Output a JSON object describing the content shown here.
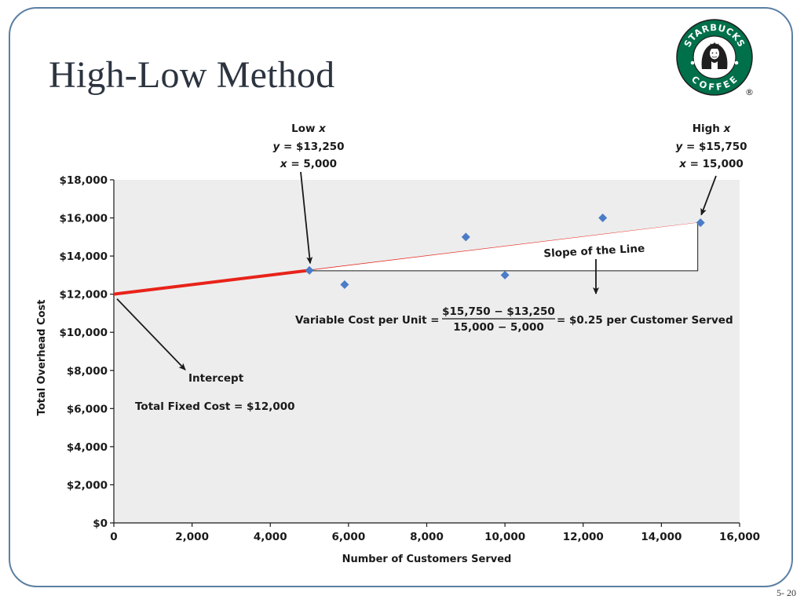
{
  "slide": {
    "title": "High-Low Method",
    "page_number": "5- 20"
  },
  "logo": {
    "text_top": "STARBUCKS",
    "text_bottom": "COFFEE",
    "registered": "®",
    "colors": {
      "ring": "#00704a",
      "inner": "#ffffff",
      "outline": "#1f1f1f"
    }
  },
  "colors": {
    "frame": "#5b7fa3",
    "title": "#2c3440",
    "plot_bg": "#ededed",
    "points": "#4a7cc7",
    "regression_line": "#e8231a",
    "annotation": "#1a1a1a"
  },
  "chart_data": {
    "type": "scatter",
    "title": "",
    "xlabel": "Number of Customers Served",
    "ylabel": "Total Overhead Cost",
    "xlim": [
      0,
      16000
    ],
    "ylim": [
      0,
      18000
    ],
    "x_ticks": [
      0,
      2000,
      4000,
      6000,
      8000,
      10000,
      12000,
      14000,
      16000
    ],
    "x_tick_labels": [
      "0",
      "2,000",
      "4,000",
      "6,000",
      "8,000",
      "10,000",
      "12,000",
      "14,000",
      "16,000"
    ],
    "y_ticks": [
      0,
      2000,
      4000,
      6000,
      8000,
      10000,
      12000,
      14000,
      16000,
      18000
    ],
    "y_tick_labels": [
      "$0",
      "$2,000",
      "$4,000",
      "$6,000",
      "$8,000",
      "$10,000",
      "$12,000",
      "$14,000",
      "$16,000",
      "$18,000"
    ],
    "grid": false,
    "points": [
      {
        "x": 5000,
        "y": 13250
      },
      {
        "x": 5900,
        "y": 12500
      },
      {
        "x": 9000,
        "y": 15000
      },
      {
        "x": 10000,
        "y": 13000
      },
      {
        "x": 12500,
        "y": 16000
      },
      {
        "x": 15000,
        "y": 15750
      }
    ],
    "line": {
      "intercept": 12000,
      "slope": 0.25,
      "x_start": 0,
      "x_end": 15000
    },
    "annotations": {
      "low": {
        "title": "Low ",
        "title_var": "x",
        "y_var": "y",
        "y_text": " = $13,250",
        "x_var": "x",
        "x_text": " = 5,000"
      },
      "high": {
        "title": "High ",
        "title_var": "x",
        "y_var": "y",
        "y_text": " = $15,750",
        "x_var": "x",
        "x_text": " = 15,000"
      },
      "slope_label": "Slope of the Line",
      "variable_cost": {
        "prefix": "Variable Cost per Unit =",
        "numerator": "$15,750 − $13,250",
        "denominator": "15,000 − 5,000",
        "suffix": "= $0.25 per Customer Served"
      },
      "intercept_label": "Intercept",
      "fixed_cost": "Total Fixed Cost =  $12,000"
    }
  }
}
